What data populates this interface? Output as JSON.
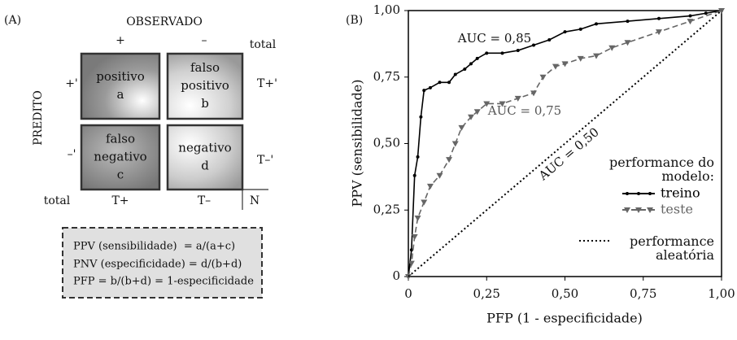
{
  "panel_a": {
    "label": "(A)",
    "observed": "OBSERVADO",
    "predicted": "PREDITO",
    "col_headers": [
      "+",
      "–",
      "total"
    ],
    "row_headers": [
      "+'",
      "–'",
      "total"
    ],
    "cells": [
      [
        "positivo",
        "a"
      ],
      [
        "falso",
        "positivo",
        "b"
      ],
      [
        "falso",
        "negativo",
        "c"
      ],
      [
        "negativo",
        "d"
      ]
    ],
    "row_totals": [
      "T+'",
      "T–'"
    ],
    "col_totals": [
      "T+",
      "T–"
    ],
    "grand_total": "N",
    "formulas": [
      "PPV (sensibilidade)  = a/(a+c)",
      "PNV (especificidade) = d/(b+d)",
      "PFP = b/(b+d) = 1-especificidade"
    ]
  },
  "chart_data": {
    "type": "line",
    "panel_label": "(B)",
    "x_label": "PFP (1 - especificidade)",
    "y_label": "PPV (sensibilidade)",
    "xlim": [
      0,
      1
    ],
    "ylim": [
      0,
      1
    ],
    "xticks": [
      0,
      {
        "value": 0.25,
        "label": "0,25"
      },
      {
        "value": 0.5,
        "label": "0,50"
      },
      {
        "value": 0.75,
        "label": "0,75"
      },
      {
        "value": 1,
        "label": "1,00"
      }
    ],
    "yticks": [
      0,
      {
        "value": 0.25,
        "label": "0,25"
      },
      {
        "value": 0.5,
        "label": "0,50"
      },
      {
        "value": 0.75,
        "label": "0,75"
      },
      {
        "value": 1,
        "label": "1,00"
      }
    ],
    "legend_title": "performance do modelo:",
    "series": [
      {
        "name": "treino",
        "color": "#000000",
        "marker": "circle",
        "dash": "solid",
        "x": [
          0,
          0.01,
          0.02,
          0.03,
          0.04,
          0.05,
          0.07,
          0.1,
          0.13,
          0.15,
          0.18,
          0.2,
          0.22,
          0.25,
          0.3,
          0.35,
          0.4,
          0.45,
          0.5,
          0.55,
          0.6,
          0.7,
          0.8,
          0.9,
          0.95,
          1
        ],
        "values": [
          0,
          0.1,
          0.38,
          0.45,
          0.6,
          0.7,
          0.71,
          0.73,
          0.73,
          0.76,
          0.78,
          0.8,
          0.82,
          0.84,
          0.84,
          0.85,
          0.87,
          0.89,
          0.92,
          0.93,
          0.95,
          0.96,
          0.97,
          0.98,
          0.99,
          1
        ]
      },
      {
        "name": "teste",
        "color": "#666666",
        "marker": "triangle",
        "dash": "dashed",
        "x": [
          0,
          0.01,
          0.02,
          0.03,
          0.05,
          0.07,
          0.1,
          0.13,
          0.15,
          0.17,
          0.2,
          0.22,
          0.25,
          0.3,
          0.35,
          0.4,
          0.43,
          0.47,
          0.5,
          0.55,
          0.6,
          0.65,
          0.7,
          0.8,
          0.9,
          1
        ],
        "values": [
          0,
          0.05,
          0.15,
          0.22,
          0.28,
          0.34,
          0.38,
          0.44,
          0.5,
          0.56,
          0.6,
          0.62,
          0.65,
          0.65,
          0.67,
          0.69,
          0.75,
          0.79,
          0.8,
          0.82,
          0.83,
          0.86,
          0.88,
          0.92,
          0.96,
          1
        ]
      },
      {
        "name": "performance aleatória",
        "color": "#000000",
        "marker": "none",
        "dash": "dotted",
        "x": [
          0,
          1
        ],
        "values": [
          0,
          1
        ]
      }
    ],
    "annotations": [
      "AUC = 0,85",
      "AUC = 0,75",
      "AUC = 0,50"
    ]
  }
}
